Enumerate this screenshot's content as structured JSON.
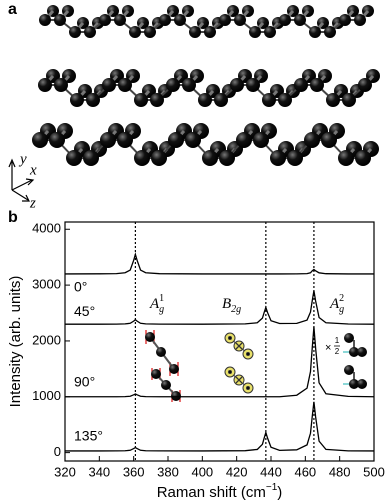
{
  "panel_a": {
    "label": "a",
    "axes": {
      "y": "y",
      "x": "x",
      "z": "z"
    }
  },
  "chart_data": {
    "type": "line",
    "panel_label": "b",
    "x_label": {
      "main": "Raman shift (cm",
      "sup": "−1",
      "end": ")"
    },
    "y_label": "Intensity (arb. units)",
    "x": [
      320,
      340,
      350,
      355,
      358,
      360,
      361,
      362,
      364,
      367,
      375,
      400,
      425,
      432,
      435,
      436,
      437,
      438,
      440,
      445,
      455,
      461,
      463,
      464,
      465,
      466,
      468,
      472,
      485,
      500
    ],
    "series": [
      {
        "name": "0°",
        "color": "#000000",
        "values": [
          3200,
          3202,
          3206,
          3221,
          3270,
          3443,
          3550,
          3443,
          3270,
          3221,
          3204,
          3200,
          3200,
          3200,
          3200,
          3200,
          3200,
          3200,
          3200,
          3200,
          3201,
          3206,
          3220,
          3255,
          3280,
          3255,
          3220,
          3204,
          3200,
          3200
        ]
      },
      {
        "name": "45°",
        "color": "#000000",
        "values": [
          2300,
          2300,
          2301,
          2305,
          2316,
          2355,
          2380,
          2355,
          2316,
          2305,
          2301,
          2300,
          2305,
          2325,
          2408,
          2508,
          2600,
          2508,
          2362,
          2312,
          2315,
          2374,
          2516,
          2715,
          2900,
          2715,
          2420,
          2326,
          2303,
          2300
        ]
      },
      {
        "name": "90°",
        "color": "#000000",
        "values": [
          1000,
          1000,
          1000,
          1003,
          1010,
          1035,
          1050,
          1035,
          1010,
          1003,
          1000,
          1000,
          1000,
          1000,
          1000,
          1000,
          1000,
          1000,
          1000,
          1001,
          1028,
          1155,
          1450,
          1865,
          2250,
          1865,
          1250,
          1055,
          1007,
          1000
        ]
      },
      {
        "name": "135°",
        "color": "#000000",
        "values": [
          30,
          30,
          31,
          34,
          42,
          72,
          90,
          72,
          42,
          34,
          31,
          30,
          35,
          57,
          149,
          259,
          360,
          259,
          96,
          40,
          50,
          139,
          347,
          639,
          910,
          639,
          206,
          58,
          32,
          30
        ]
      }
    ],
    "xlim": [
      320,
      500
    ],
    "ylim": [
      -150,
      4130
    ],
    "xticks": [
      320,
      340,
      360,
      380,
      400,
      420,
      440,
      460,
      480,
      500
    ],
    "yticks": [
      0,
      1000,
      2000,
      3000,
      4000
    ],
    "vlines": [
      361,
      437,
      465
    ],
    "annotations": [
      {
        "base": "A",
        "sub": "g",
        "sup": "1"
      },
      {
        "base": "B",
        "sub": "2g"
      },
      {
        "base": "A",
        "sub": "g",
        "sup": "2"
      }
    ],
    "scale_note": {
      "sign": "×",
      "num": "1",
      "den": "2"
    }
  }
}
